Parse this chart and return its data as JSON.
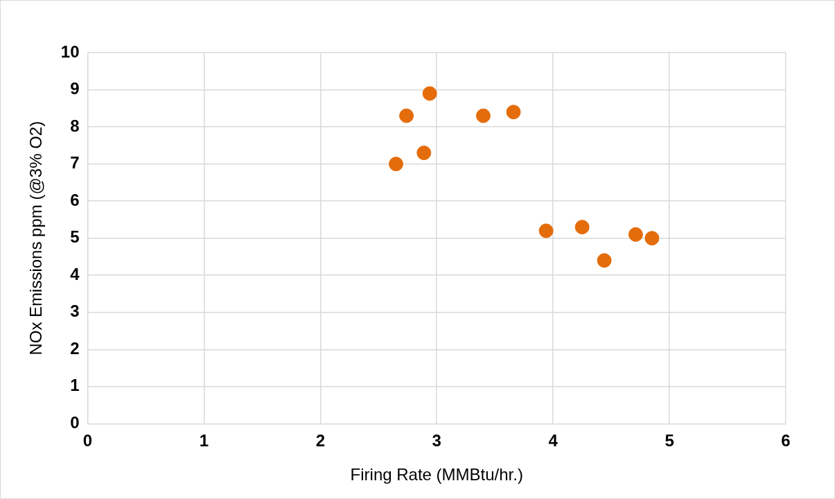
{
  "chart_data": {
    "type": "scatter",
    "xlabel": "Firing Rate (MMBtu/hr.)",
    "ylabel": "NOx Emissions ppm (@3% O2)",
    "x": [
      2.65,
      2.74,
      2.94,
      2.89,
      3.4,
      3.66,
      3.94,
      4.25,
      4.44,
      4.71,
      4.85
    ],
    "values": [
      7.0,
      8.3,
      8.9,
      7.3,
      8.3,
      8.4,
      5.2,
      5.3,
      4.4,
      5.1,
      5.0
    ],
    "color": "#e46c0a",
    "xlim": [
      0,
      6
    ],
    "xticks": [
      0,
      1,
      2,
      3,
      4,
      5,
      6
    ],
    "ylim": [
      0,
      10
    ],
    "yticks": [
      0,
      1,
      2,
      3,
      4,
      5,
      6,
      7,
      8,
      9,
      10
    ],
    "grid": true,
    "legend": false,
    "marker": "circle"
  }
}
